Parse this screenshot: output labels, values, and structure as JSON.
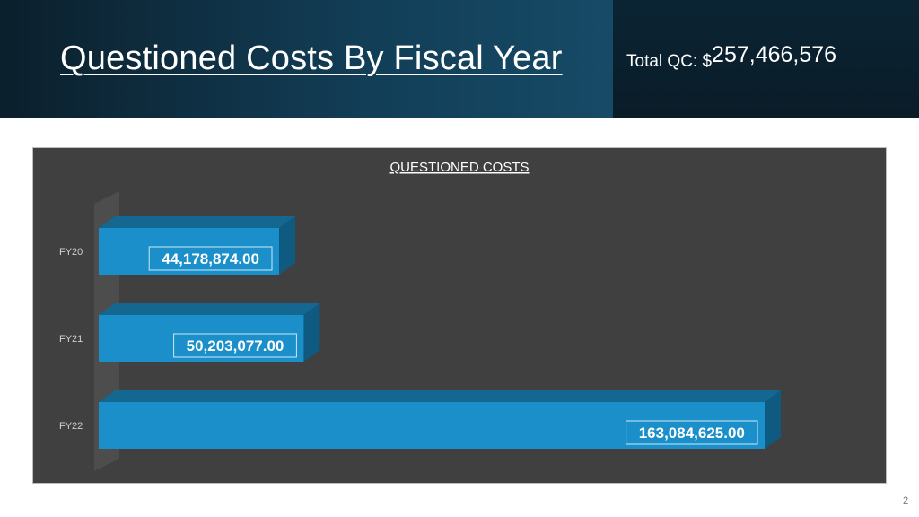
{
  "header": {
    "title": "Questioned Costs By Fiscal Year",
    "total_label": "Total QC: $",
    "total_value": "257,466,576"
  },
  "chart_data": {
    "type": "bar",
    "orientation": "horizontal",
    "title": "QUESTIONED COSTS",
    "categories": [
      "FY20",
      "FY21",
      "FY22"
    ],
    "values": [
      44178874.0,
      50203077.0,
      163084625.0
    ],
    "data_labels": [
      "44,178,874.00",
      "50,203,077.00",
      "163,084,625.00"
    ],
    "xlim": [
      0,
      163084625.0
    ],
    "grid": false,
    "legend": "none",
    "colors": {
      "bar_front": "#1a8fc9",
      "bar_top": "#136791",
      "bar_side": "#0e5a80",
      "background": "#404040",
      "label_text": "#ffffff",
      "tick_text": "#d0d0d0"
    }
  },
  "footer": {
    "page_number": "2"
  }
}
